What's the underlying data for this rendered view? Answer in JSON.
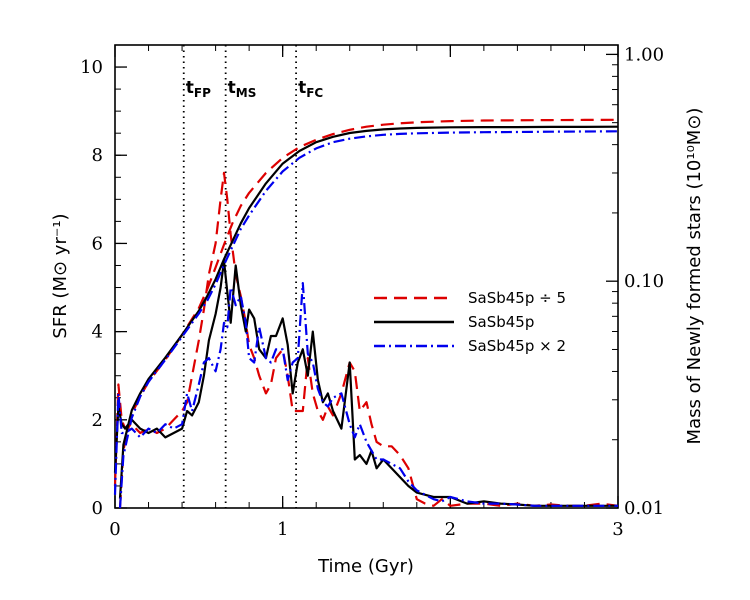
{
  "chart_data": {
    "type": "line",
    "xlabel": "Time (Gyr)",
    "ylabel_left": "SFR (M⊙ yr⁻¹)",
    "ylabel_right": "Mass of Newly formed stars (10¹⁰M⊙)",
    "xlim": [
      0,
      3
    ],
    "ylim_left": [
      0,
      10.5
    ],
    "ylim_right_log": [
      0.01,
      1.1
    ],
    "x_ticks": [
      "0",
      "1",
      "2",
      "3"
    ],
    "y_left_ticks": [
      "0",
      "2",
      "4",
      "6",
      "8",
      "10"
    ],
    "y_right_ticks": [
      "0.01",
      "0.10",
      "1.00"
    ],
    "events": [
      {
        "label": "t",
        "sub": "FP",
        "x": 0.41
      },
      {
        "label": "t",
        "sub": "MS",
        "x": 0.66
      },
      {
        "label": "t",
        "sub": "FC",
        "x": 1.08
      }
    ],
    "legend": [
      {
        "name": "SaSb45p ÷ 5",
        "color": "#dd0000",
        "dash": "dashed"
      },
      {
        "name": "SaSb45p",
        "color": "#000000",
        "dash": "solid"
      },
      {
        "name": "SaSb45p × 2",
        "color": "#0000ee",
        "dash": "dashdot"
      }
    ],
    "series_sfr": [
      {
        "name": "SaSb45p ÷ 5",
        "color": "#dd0000",
        "dash": "dashed",
        "x": [
          0,
          0.02,
          0.04,
          0.06,
          0.1,
          0.15,
          0.2,
          0.25,
          0.3,
          0.35,
          0.4,
          0.43,
          0.46,
          0.5,
          0.53,
          0.56,
          0.6,
          0.63,
          0.65,
          0.67,
          0.69,
          0.72,
          0.75,
          0.78,
          0.8,
          0.83,
          0.86,
          0.9,
          0.93,
          0.96,
          1.0,
          1.03,
          1.06,
          1.09,
          1.12,
          1.15,
          1.18,
          1.21,
          1.24,
          1.27,
          1.3,
          1.35,
          1.4,
          1.43,
          1.46,
          1.5,
          1.53,
          1.56,
          1.6,
          1.65,
          1.7,
          1.75,
          1.8,
          1.85,
          1.9,
          1.95,
          2.0,
          2.1,
          2.2,
          2.3,
          2.4,
          2.5,
          2.6,
          2.7,
          2.8,
          2.9,
          3.0
        ],
        "y": [
          0.5,
          2.8,
          2.0,
          1.8,
          1.9,
          1.7,
          1.8,
          1.7,
          1.8,
          2.0,
          2.2,
          2.4,
          3.0,
          3.8,
          4.5,
          5.3,
          6.0,
          7.0,
          7.6,
          7.0,
          6.2,
          5.3,
          4.8,
          4.2,
          3.7,
          3.4,
          3.0,
          2.6,
          2.8,
          3.4,
          3.6,
          3.0,
          2.2,
          2.2,
          2.2,
          3.4,
          2.6,
          2.2,
          2.0,
          2.3,
          2.1,
          2.6,
          3.3,
          3.1,
          2.2,
          2.4,
          1.9,
          1.5,
          1.4,
          1.4,
          1.2,
          0.9,
          0.2,
          0.1,
          0.05,
          0.2,
          0.05,
          0.1,
          0.1,
          0.05,
          0.1,
          0.05,
          0.08,
          0.05,
          0.05,
          0.1,
          0.05
        ]
      },
      {
        "name": "SaSb45p",
        "color": "#000000",
        "dash": "solid",
        "x": [
          0,
          0.02,
          0.04,
          0.06,
          0.1,
          0.15,
          0.2,
          0.25,
          0.3,
          0.35,
          0.4,
          0.43,
          0.46,
          0.5,
          0.53,
          0.56,
          0.6,
          0.63,
          0.65,
          0.67,
          0.69,
          0.72,
          0.75,
          0.78,
          0.8,
          0.83,
          0.86,
          0.9,
          0.93,
          0.96,
          1.0,
          1.03,
          1.06,
          1.09,
          1.12,
          1.15,
          1.18,
          1.21,
          1.24,
          1.27,
          1.3,
          1.35,
          1.4,
          1.43,
          1.46,
          1.5,
          1.53,
          1.56,
          1.6,
          1.65,
          1.7,
          1.75,
          1.8,
          1.85,
          1.9,
          1.95,
          2.0,
          2.1,
          2.2,
          2.3,
          2.4,
          2.5,
          2.6,
          2.7,
          2.8,
          2.9,
          3.0
        ],
        "y": [
          0.8,
          2.3,
          1.9,
          1.8,
          2.0,
          1.8,
          1.7,
          1.8,
          1.6,
          1.7,
          1.8,
          2.2,
          2.1,
          2.4,
          3.0,
          3.8,
          4.4,
          5.0,
          5.6,
          4.9,
          4.2,
          5.5,
          4.6,
          4.0,
          4.5,
          4.3,
          3.6,
          3.4,
          3.9,
          3.9,
          4.3,
          3.7,
          2.6,
          3.3,
          3.6,
          3.0,
          4.0,
          2.9,
          2.4,
          2.6,
          2.2,
          1.8,
          3.3,
          1.1,
          1.2,
          1.0,
          1.3,
          0.9,
          1.1,
          0.9,
          0.7,
          0.5,
          0.35,
          0.3,
          0.25,
          0.25,
          0.25,
          0.1,
          0.15,
          0.1,
          0.08,
          0.05,
          0.05,
          0.05,
          0.05,
          0.05,
          0.05
        ]
      },
      {
        "name": "SaSb45p × 2",
        "color": "#0000ee",
        "dash": "dashdot",
        "x": [
          0,
          0.02,
          0.04,
          0.06,
          0.1,
          0.15,
          0.2,
          0.25,
          0.3,
          0.35,
          0.4,
          0.43,
          0.46,
          0.5,
          0.53,
          0.56,
          0.6,
          0.63,
          0.65,
          0.67,
          0.69,
          0.72,
          0.75,
          0.78,
          0.8,
          0.83,
          0.86,
          0.9,
          0.93,
          0.96,
          1.0,
          1.03,
          1.06,
          1.09,
          1.12,
          1.15,
          1.18,
          1.21,
          1.24,
          1.27,
          1.3,
          1.35,
          1.4,
          1.43,
          1.46,
          1.5,
          1.53,
          1.56,
          1.6,
          1.65,
          1.7,
          1.75,
          1.8,
          1.85,
          1.9,
          1.95,
          2.0,
          2.1,
          2.2,
          2.3,
          2.4,
          2.5,
          2.6,
          2.7,
          2.8,
          2.9,
          3.0
        ],
        "y": [
          0.3,
          2.6,
          1.7,
          1.7,
          1.8,
          1.6,
          1.8,
          1.7,
          1.9,
          1.8,
          1.9,
          2.6,
          2.2,
          2.8,
          3.3,
          3.4,
          3.1,
          3.6,
          4.2,
          4.1,
          5.0,
          4.6,
          4.8,
          4.2,
          3.4,
          3.3,
          4.1,
          3.4,
          3.3,
          3.6,
          3.6,
          2.9,
          3.3,
          3.4,
          5.1,
          3.5,
          3.3,
          2.7,
          2.4,
          2.3,
          2.5,
          2.6,
          1.9,
          1.6,
          1.9,
          1.5,
          1.3,
          1.1,
          1.1,
          1.0,
          0.9,
          0.6,
          0.4,
          0.3,
          0.2,
          0.15,
          0.25,
          0.15,
          0.1,
          0.1,
          0.08,
          0.05,
          0.05,
          0.05,
          0.05,
          0.05,
          0.05
        ]
      }
    ],
    "series_mass": [
      {
        "name": "SaSb45p ÷ 5",
        "color": "#dd0000",
        "dash": "dashed",
        "x": [
          0.03,
          0.05,
          0.1,
          0.15,
          0.2,
          0.3,
          0.4,
          0.5,
          0.55,
          0.6,
          0.65,
          0.7,
          0.75,
          0.8,
          0.9,
          1.0,
          1.1,
          1.2,
          1.3,
          1.4,
          1.5,
          1.6,
          1.7,
          1.8,
          2.0,
          2.2,
          2.4,
          2.6,
          2.8,
          3.0
        ],
        "y": [
          0.0095,
          0.018,
          0.026,
          0.031,
          0.036,
          0.045,
          0.058,
          0.076,
          0.092,
          0.115,
          0.145,
          0.18,
          0.215,
          0.245,
          0.3,
          0.35,
          0.39,
          0.42,
          0.445,
          0.465,
          0.48,
          0.49,
          0.497,
          0.502,
          0.508,
          0.511,
          0.512,
          0.513,
          0.514,
          0.515
        ]
      },
      {
        "name": "SaSb45p",
        "color": "#000000",
        "dash": "solid",
        "x": [
          0.03,
          0.05,
          0.1,
          0.15,
          0.2,
          0.3,
          0.4,
          0.5,
          0.55,
          0.6,
          0.65,
          0.7,
          0.75,
          0.8,
          0.9,
          1.0,
          1.1,
          1.2,
          1.3,
          1.4,
          1.5,
          1.6,
          1.7,
          1.8,
          2.0,
          2.2,
          2.4,
          2.6,
          2.8,
          3.0
        ],
        "y": [
          0.011,
          0.019,
          0.027,
          0.032,
          0.037,
          0.046,
          0.058,
          0.074,
          0.086,
          0.102,
          0.125,
          0.15,
          0.18,
          0.21,
          0.27,
          0.33,
          0.375,
          0.41,
          0.433,
          0.45,
          0.46,
          0.467,
          0.471,
          0.474,
          0.477,
          0.478,
          0.478,
          0.479,
          0.479,
          0.48
        ]
      },
      {
        "name": "SaSb45p × 2",
        "color": "#0000ee",
        "dash": "dashdot",
        "x": [
          0.03,
          0.05,
          0.1,
          0.15,
          0.2,
          0.3,
          0.4,
          0.5,
          0.55,
          0.6,
          0.65,
          0.7,
          0.75,
          0.8,
          0.9,
          1.0,
          1.1,
          1.2,
          1.3,
          1.4,
          1.5,
          1.6,
          1.7,
          1.8,
          2.0,
          2.2,
          2.4,
          2.6,
          2.8,
          3.0
        ],
        "y": [
          0.009,
          0.017,
          0.025,
          0.031,
          0.036,
          0.045,
          0.057,
          0.072,
          0.082,
          0.097,
          0.118,
          0.142,
          0.17,
          0.195,
          0.25,
          0.305,
          0.35,
          0.385,
          0.41,
          0.425,
          0.435,
          0.442,
          0.446,
          0.449,
          0.452,
          0.454,
          0.455,
          0.456,
          0.457,
          0.458
        ]
      }
    ]
  }
}
